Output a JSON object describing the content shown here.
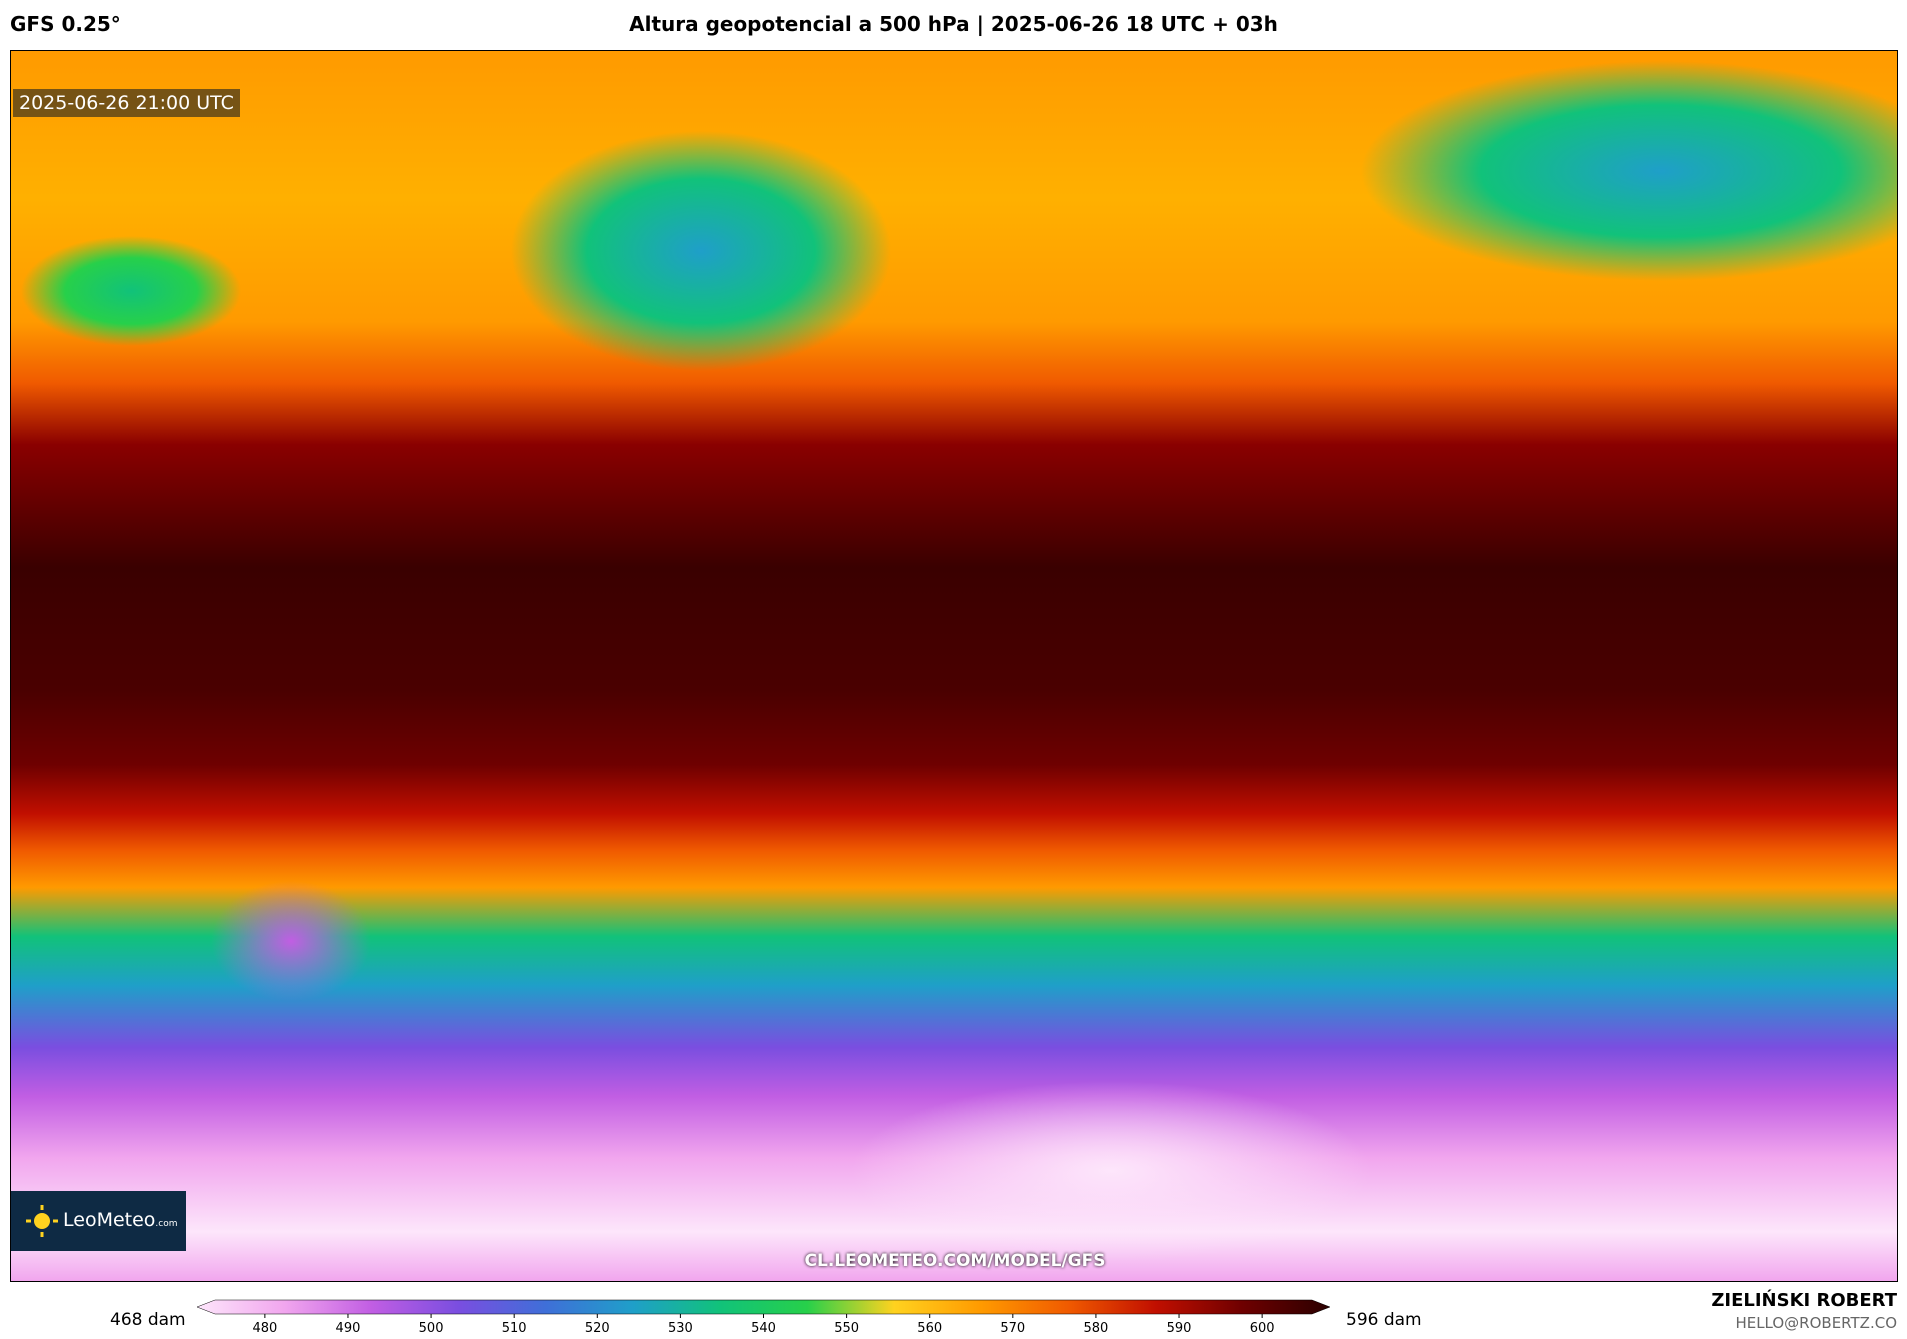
{
  "header": {
    "model": "GFS 0.25°",
    "title": "Altura geopotencial a 500 hPa | 2025-06-26 18 UTC + 03h"
  },
  "map": {
    "valid_time": "2025-06-26 21:00 UTC",
    "logo": "LeoMeteo",
    "logo_suffix": ".com",
    "url": "CL.LEOMETEO.COM/MODEL/GFS"
  },
  "colorbar": {
    "min_label": "468 dam",
    "max_label": "596 dam",
    "range": [
      474,
      606
    ],
    "ticks": [
      480,
      490,
      500,
      510,
      520,
      530,
      540,
      550,
      560,
      570,
      580,
      590,
      600
    ],
    "colors": [
      "#fde6fb",
      "#f1a6ee",
      "#c15ee3",
      "#7a4ee0",
      "#3f6fd8",
      "#1f9fc9",
      "#11c27a",
      "#27d04a",
      "#ffd21f",
      "#ff9a00",
      "#f05a00",
      "#c10f00",
      "#6e0000",
      "#2a0000"
    ]
  },
  "credit": {
    "author": "ZIELIŃSKI ROBERT",
    "email": "HELLO@ROBERTZ.CO"
  }
}
